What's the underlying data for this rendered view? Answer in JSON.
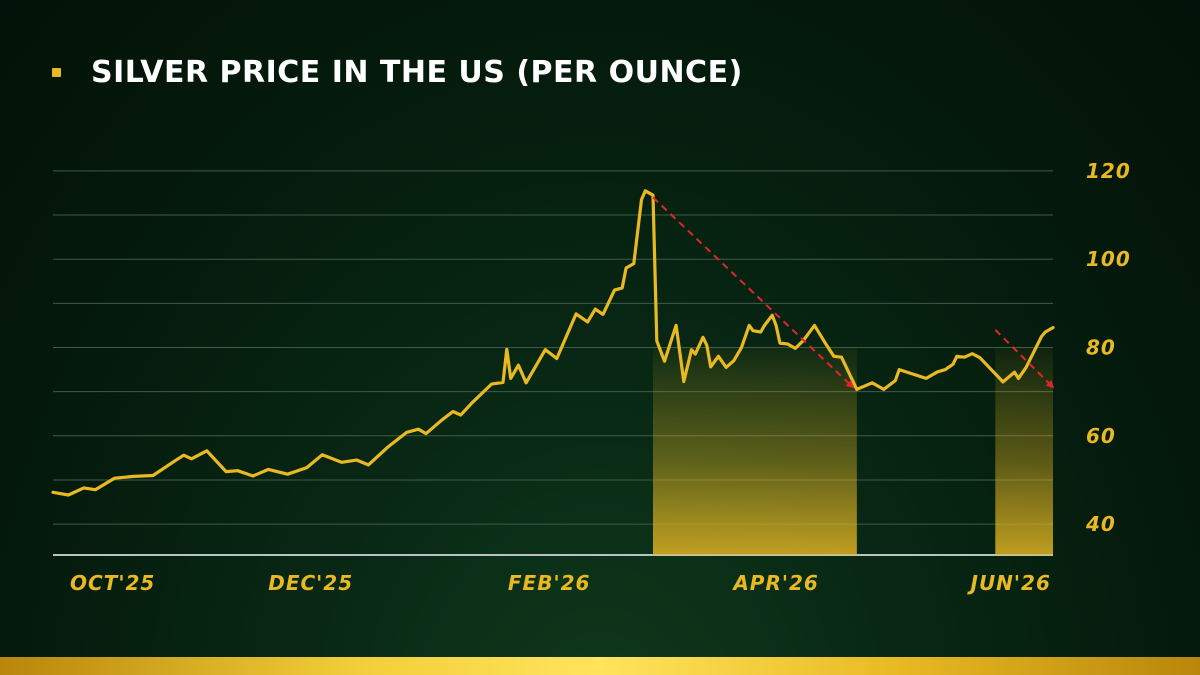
{
  "header": {
    "title": "SILVER PRICE IN THE US (PER OUNCE)"
  },
  "colors": {
    "line": "#e8b923",
    "shade": "#e8b923",
    "arrow": "#e0262b",
    "grid": "#3f5a48",
    "axis": "#b9c3c6",
    "label": "#e8b923"
  },
  "chart_data": {
    "type": "line",
    "title": "SILVER PRICE IN THE US (PER OUNCE)",
    "xlabel": "",
    "ylabel": "",
    "x_range": [
      "2025-09-25",
      "2026-06-12"
    ],
    "ylim": [
      33,
      127
    ],
    "y_ticks": [
      40,
      60,
      80,
      100,
      120
    ],
    "y_tick_labels": [
      "40",
      "60",
      "80",
      "100",
      "120"
    ],
    "x_ticks": [
      {
        "label": "OCT'25",
        "date": "2025-10-01"
      },
      {
        "label": "DEC'25",
        "date": "2025-12-01"
      },
      {
        "label": "FEB'26",
        "date": "2026-02-01"
      },
      {
        "label": "APR'26",
        "date": "2026-04-01"
      },
      {
        "label": "JUN'26",
        "date": "2026-06-01"
      }
    ],
    "grid": true,
    "series": [
      {
        "points": [
          [
            "2025-09-25",
            47.2
          ],
          [
            "2025-09-29",
            46.6
          ],
          [
            "2025-10-03",
            48.2
          ],
          [
            "2025-10-06",
            47.8
          ],
          [
            "2025-10-11",
            50.4
          ],
          [
            "2025-10-16",
            50.8
          ],
          [
            "2025-10-21",
            51.0
          ],
          [
            "2025-10-27",
            54.5
          ],
          [
            "2025-10-29",
            55.6
          ],
          [
            "2025-10-31",
            54.8
          ],
          [
            "2025-11-04",
            56.6
          ],
          [
            "2025-11-09",
            51.9
          ],
          [
            "2025-11-12",
            52.1
          ],
          [
            "2025-11-16",
            50.9
          ],
          [
            "2025-11-20",
            52.4
          ],
          [
            "2025-11-25",
            51.3
          ],
          [
            "2025-11-30",
            52.8
          ],
          [
            "2025-12-04",
            55.7
          ],
          [
            "2025-12-09",
            54.0
          ],
          [
            "2025-12-13",
            54.5
          ],
          [
            "2025-12-16",
            53.4
          ],
          [
            "2025-12-21",
            57.4
          ],
          [
            "2025-12-26",
            60.8
          ],
          [
            "2025-12-29",
            61.5
          ],
          [
            "2025-12-31",
            60.5
          ],
          [
            "2026-01-04",
            63.5
          ],
          [
            "2026-01-07",
            65.5
          ],
          [
            "2026-01-09",
            64.7
          ],
          [
            "2026-01-12",
            67.5
          ],
          [
            "2026-01-17",
            71.7
          ],
          [
            "2026-01-20",
            72.1
          ],
          [
            "2026-01-21",
            79.6
          ],
          [
            "2026-01-22",
            73.0
          ],
          [
            "2026-01-24",
            76.0
          ],
          [
            "2026-01-26",
            72.0
          ],
          [
            "2026-01-31",
            79.5
          ],
          [
            "2026-02-03",
            77.5
          ],
          [
            "2026-02-08",
            87.6
          ],
          [
            "2026-02-11",
            85.8
          ],
          [
            "2026-02-13",
            88.7
          ],
          [
            "2026-02-15",
            87.5
          ],
          [
            "2026-02-18",
            93.0
          ],
          [
            "2026-02-20",
            93.5
          ],
          [
            "2026-02-21",
            98.0
          ],
          [
            "2026-02-23",
            99.0
          ],
          [
            "2026-02-25",
            113.5
          ],
          [
            "2026-02-26",
            115.5
          ],
          [
            "2026-02-28",
            114.5
          ],
          [
            "2026-03-01",
            81.5
          ],
          [
            "2026-03-03",
            76.9
          ],
          [
            "2026-03-06",
            85.0
          ],
          [
            "2026-03-08",
            72.3
          ],
          [
            "2026-03-10",
            79.5
          ],
          [
            "2026-03-11",
            78.5
          ],
          [
            "2026-03-13",
            82.3
          ],
          [
            "2026-03-14",
            80.5
          ],
          [
            "2026-03-15",
            75.6
          ],
          [
            "2026-03-17",
            78.0
          ],
          [
            "2026-03-19",
            75.5
          ],
          [
            "2026-03-21",
            77.0
          ],
          [
            "2026-03-23",
            80.0
          ],
          [
            "2026-03-25",
            85.0
          ],
          [
            "2026-03-26",
            83.8
          ],
          [
            "2026-03-28",
            83.5
          ],
          [
            "2026-03-29",
            85.0
          ],
          [
            "2026-03-31",
            87.3
          ],
          [
            "2026-04-01",
            85.0
          ],
          [
            "2026-04-02",
            81.0
          ],
          [
            "2026-04-04",
            80.8
          ],
          [
            "2026-04-06",
            79.8
          ],
          [
            "2026-04-08",
            81.5
          ],
          [
            "2026-04-11",
            85.0
          ],
          [
            "2026-04-14",
            80.7
          ],
          [
            "2026-04-16",
            78.0
          ],
          [
            "2026-04-18",
            77.8
          ],
          [
            "2026-04-22",
            70.5
          ],
          [
            "2026-04-26",
            72.0
          ],
          [
            "2026-04-29",
            70.5
          ],
          [
            "2026-05-02",
            72.5
          ],
          [
            "2026-05-03",
            75.0
          ],
          [
            "2026-05-10",
            73.0
          ],
          [
            "2026-05-13",
            74.5
          ],
          [
            "2026-05-15",
            75.0
          ],
          [
            "2026-05-17",
            76.2
          ],
          [
            "2026-05-18",
            78.0
          ],
          [
            "2026-05-20",
            77.8
          ],
          [
            "2026-05-22",
            78.6
          ],
          [
            "2026-05-24",
            77.7
          ],
          [
            "2026-05-30",
            72.2
          ],
          [
            "2026-06-02",
            74.4
          ],
          [
            "2026-06-03",
            73.0
          ],
          [
            "2026-06-05",
            75.5
          ],
          [
            "2026-06-07",
            79.0
          ],
          [
            "2026-06-09",
            82.5
          ],
          [
            "2026-06-10",
            83.5
          ],
          [
            "2026-06-12",
            84.5
          ]
        ]
      }
    ],
    "shaded_regions": [
      {
        "from": "2026-02-28",
        "to": "2026-04-22"
      },
      {
        "from": "2026-05-28",
        "to": "2026-06-12"
      }
    ],
    "annotations": [
      {
        "type": "dashed-arrow",
        "from": [
          "2026-02-28",
          114
        ],
        "to": [
          "2026-04-21",
          71
        ]
      },
      {
        "type": "dashed-arrow",
        "from": [
          "2026-05-28",
          84
        ],
        "to": [
          "2026-06-12",
          71
        ]
      }
    ]
  }
}
